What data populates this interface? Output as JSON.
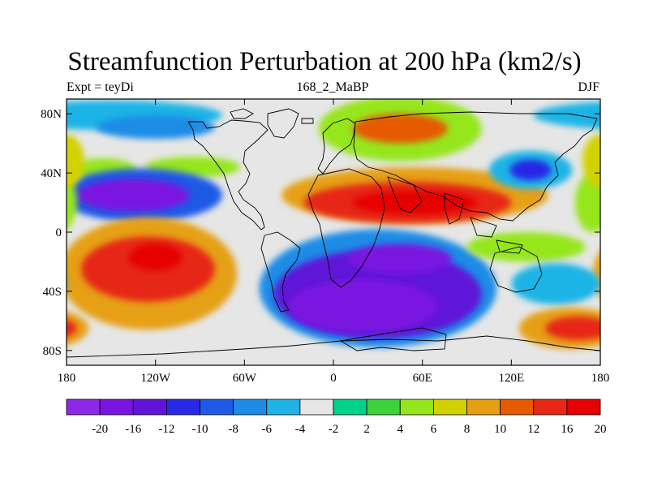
{
  "title": "Streamfunction Perturbation at 200 hPa (km2/s)",
  "subtitle_left": "Expt = teyDi",
  "subtitle_center": "168_2_MaBP",
  "subtitle_right": "DJF",
  "map": {
    "lon_ticks": [
      "180",
      "120W",
      "60W",
      "0",
      "60E",
      "120E",
      "180"
    ],
    "lat_ticks": [
      "80N",
      "40N",
      "0",
      "40S",
      "80S"
    ],
    "missing_color": "#e6e6e6",
    "projection": "cylindrical equidistant"
  },
  "colorbar": {
    "colors": [
      "#8c28e6",
      "#7a14e0",
      "#5f14d8",
      "#2828e6",
      "#1e5ae6",
      "#1e8ce6",
      "#1eb4e6",
      "#e6e6e6",
      "#00d28c",
      "#3cd23c",
      "#96e61e",
      "#d2d200",
      "#e6a014",
      "#e65a00",
      "#e62814",
      "#e60000"
    ],
    "labels": [
      "-20",
      "-16",
      "-12",
      "-10",
      "-8",
      "-6",
      "-4",
      "-2",
      "2",
      "4",
      "6",
      "8",
      "10",
      "12",
      "16",
      "20"
    ]
  },
  "blobs": [
    {
      "lon": -150,
      "lat": 79,
      "rx": 75,
      "ry": 10,
      "value": -5
    },
    {
      "lon": -120,
      "lat": 71,
      "rx": 40,
      "ry": 8,
      "value": -8
    },
    {
      "lon": -155,
      "lat": 42,
      "rx": 22,
      "ry": 8,
      "value": 5
    },
    {
      "lon": -95,
      "lat": 44,
      "rx": 32,
      "ry": 7,
      "value": 5
    },
    {
      "lon": -130,
      "lat": 25,
      "rx": 55,
      "ry": 18,
      "value": -10
    },
    {
      "lon": -135,
      "lat": 25,
      "rx": 38,
      "ry": 11,
      "value": -17
    },
    {
      "lon": 45,
      "lat": 70,
      "rx": 55,
      "ry": 22,
      "value": 5
    },
    {
      "lon": 45,
      "lat": 70,
      "rx": 32,
      "ry": 10,
      "value": 10
    },
    {
      "lon": 55,
      "lat": 25,
      "rx": 90,
      "ry": 19,
      "value": 8
    },
    {
      "lon": 50,
      "lat": 20,
      "rx": 70,
      "ry": 14,
      "value": 14
    },
    {
      "lon": 55,
      "lat": 20,
      "rx": 42,
      "ry": 8,
      "value": 20
    },
    {
      "lon": 133,
      "lat": 42,
      "rx": 28,
      "ry": 13,
      "value": -6
    },
    {
      "lon": 133,
      "lat": 42,
      "rx": 14,
      "ry": 7,
      "value": -12
    },
    {
      "lon": 175,
      "lat": 20,
      "rx": 12,
      "ry": 20,
      "value": 5
    },
    {
      "lon": 180,
      "lat": 48,
      "rx": 12,
      "ry": 18,
      "value": 6
    },
    {
      "lon": -125,
      "lat": -28,
      "rx": 60,
      "ry": 38,
      "value": 8
    },
    {
      "lon": -125,
      "lat": -25,
      "rx": 45,
      "ry": 22,
      "value": 14
    },
    {
      "lon": -120,
      "lat": -17,
      "rx": 18,
      "ry": 9,
      "value": 20
    },
    {
      "lon": 30,
      "lat": -38,
      "rx": 80,
      "ry": 40,
      "value": -8
    },
    {
      "lon": 30,
      "lat": -42,
      "rx": 70,
      "ry": 30,
      "value": -14
    },
    {
      "lon": 20,
      "lat": -50,
      "rx": 50,
      "ry": 18,
      "value": -20
    },
    {
      "lon": 45,
      "lat": -18,
      "rx": 35,
      "ry": 10,
      "value": -19
    },
    {
      "lon": 130,
      "lat": -10,
      "rx": 40,
      "ry": 10,
      "value": 5
    },
    {
      "lon": 150,
      "lat": -35,
      "rx": 30,
      "ry": 14,
      "value": -6
    },
    {
      "lon": 160,
      "lat": -65,
      "rx": 35,
      "ry": 14,
      "value": 8
    },
    {
      "lon": 165,
      "lat": -65,
      "rx": 22,
      "ry": 8,
      "value": 14
    }
  ]
}
